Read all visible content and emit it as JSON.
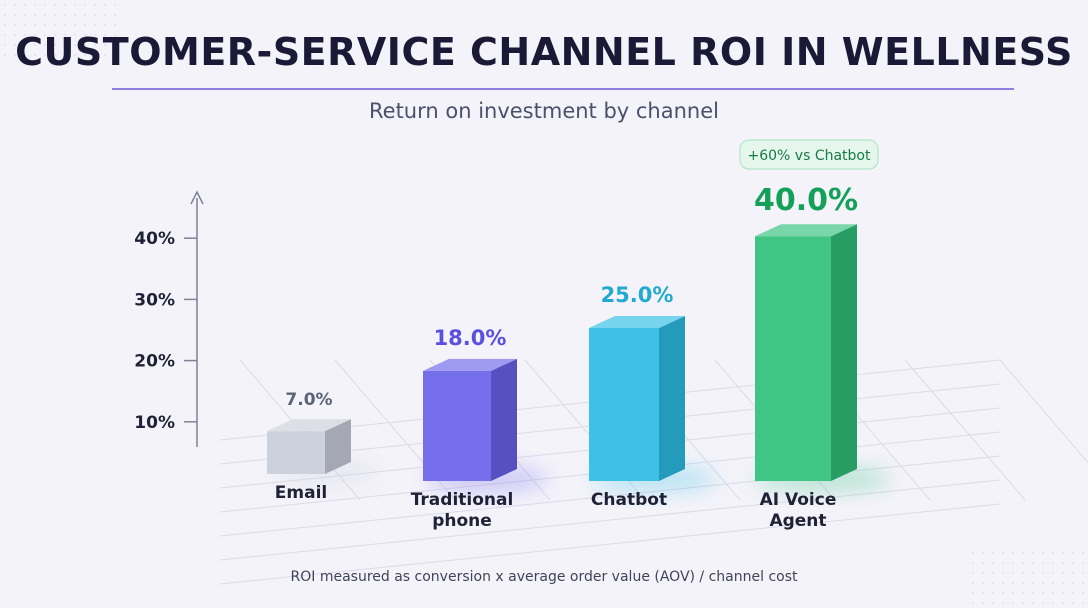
{
  "title": "CUSTOMER-SERVICE CHANNEL ROI IN WELLNESS",
  "subtitle": "Return on investment by channel",
  "footnote": "ROI measured as conversion x average order value (AOV) / channel cost",
  "chart_data": {
    "type": "bar",
    "categories": [
      "Email",
      "Traditional phone",
      "Chatbot",
      "AI Voice Agent"
    ],
    "category_lines": [
      [
        "Email"
      ],
      [
        "Traditional",
        "phone"
      ],
      [
        "Chatbot"
      ],
      [
        "AI Voice",
        "Agent"
      ]
    ],
    "values": [
      7.0,
      18.0,
      25.0,
      40.0
    ],
    "value_labels": [
      "7.0%",
      "18.0%",
      "25.0%",
      "40.0%"
    ],
    "colors": [
      "#c9cdd9",
      "#6a62ea",
      "#2cbde3",
      "#2fc07a"
    ],
    "label_colors": [
      "#5c6378",
      "#5a4fe0",
      "#22a9cf",
      "#15a05a"
    ],
    "yticks": [
      10,
      20,
      30,
      40
    ],
    "ytick_labels": [
      "10%",
      "20%",
      "30%",
      "40%"
    ],
    "ylim": [
      0,
      45
    ],
    "grid": true,
    "annotation": {
      "category": "AI Voice Agent",
      "text": "+60% vs Chatbot"
    },
    "xlabel": "",
    "ylabel": ""
  }
}
